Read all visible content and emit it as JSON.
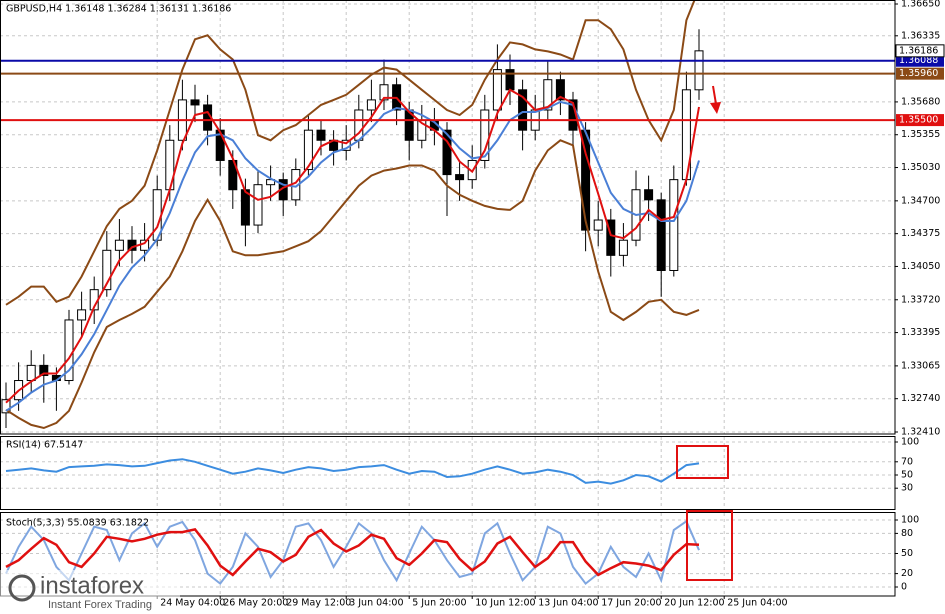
{
  "chart_data": [
    {
      "type": "candlestick",
      "title": "GBPUSD,H4  1.36148 1.36284 1.36131 1.36186",
      "categories": [
        null,
        null,
        null,
        null,
        null,
        null,
        null,
        null,
        null,
        null,
        null,
        null,
        "24 May 04:00",
        null,
        null,
        null,
        null,
        "26 May 20:00",
        null,
        null,
        null,
        null,
        "29 May 12:00",
        null,
        null,
        null,
        null,
        "3 Jun 04:00",
        null,
        null,
        null,
        null,
        "5 Jun 20:00",
        null,
        null,
        null,
        null,
        "10 Jun 12:00",
        null,
        null,
        null,
        null,
        "13 Jun 04:00",
        null,
        null,
        null,
        null,
        "17 Jun 20:00",
        null,
        null,
        null,
        null,
        "20 Jun 12:00",
        null,
        null,
        null,
        null,
        "25 Jun 04:00"
      ],
      "open": [
        1.326,
        1.3273,
        1.3292,
        1.3307,
        1.3297,
        1.3292,
        1.3352,
        1.3362,
        1.3382,
        1.3421,
        1.3431,
        1.3421,
        1.3431,
        1.3481,
        1.353,
        1.357,
        1.3565,
        1.354,
        1.351,
        1.3481,
        1.3446,
        1.3486,
        1.3491,
        1.3471,
        1.3501,
        1.354,
        1.353,
        1.352,
        1.353,
        1.356,
        1.357,
        1.3585,
        1.356,
        1.353,
        1.355,
        1.354,
        1.3496,
        1.3491,
        1.351,
        1.356,
        1.36,
        1.358,
        1.354,
        1.356,
        1.359,
        1.357,
        1.354,
        1.3441,
        1.3451,
        1.3416,
        1.3431,
        1.3481,
        1.3471,
        1.3401,
        1.3491,
        1.358,
        null,
        null
      ],
      "high": [
        1.329,
        1.331,
        1.3322,
        1.3318,
        1.3305,
        1.3362,
        1.338,
        1.3395,
        1.344,
        1.3452,
        1.3445,
        1.3448,
        1.3495,
        1.3545,
        1.359,
        1.3585,
        1.3575,
        1.3552,
        1.352,
        1.3492,
        1.35,
        1.3505,
        1.3498,
        1.3512,
        1.3556,
        1.355,
        1.354,
        1.3545,
        1.3575,
        1.359,
        1.361,
        1.3592,
        1.3568,
        1.3565,
        1.3562,
        1.3548,
        1.351,
        1.3525,
        1.3575,
        1.3625,
        1.3615,
        1.359,
        1.3575,
        1.3608,
        1.3598,
        1.3578,
        1.3548,
        1.347,
        1.3462,
        1.3448,
        1.35,
        1.3495,
        1.3478,
        1.3505,
        1.3598,
        1.364,
        null,
        null
      ],
      "low": [
        1.3245,
        1.3262,
        1.328,
        1.327,
        1.3262,
        1.3288,
        1.3335,
        1.3348,
        1.3375,
        1.3405,
        1.3408,
        1.341,
        1.3425,
        1.347,
        1.352,
        1.3548,
        1.3525,
        1.3495,
        1.3462,
        1.3425,
        1.3438,
        1.347,
        1.3455,
        1.3465,
        1.3495,
        1.3515,
        1.3505,
        1.351,
        1.3522,
        1.3548,
        1.356,
        1.3545,
        1.351,
        1.3522,
        1.3525,
        1.3455,
        1.347,
        1.3482,
        1.3502,
        1.355,
        1.3565,
        1.352,
        1.353,
        1.355,
        1.3555,
        1.3525,
        1.342,
        1.3425,
        1.3395,
        1.3405,
        1.3425,
        1.345,
        1.3375,
        1.3395,
        1.3485,
        1.357,
        null,
        null
      ],
      "close": [
        1.3273,
        1.3292,
        1.3307,
        1.3297,
        1.3292,
        1.3352,
        1.3362,
        1.3382,
        1.3421,
        1.3431,
        1.3421,
        1.3431,
        1.3481,
        1.353,
        1.357,
        1.3565,
        1.354,
        1.351,
        1.3481,
        1.3446,
        1.3486,
        1.3491,
        1.3471,
        1.3501,
        1.354,
        1.353,
        1.352,
        1.353,
        1.356,
        1.357,
        1.3585,
        1.356,
        1.353,
        1.355,
        1.354,
        1.3496,
        1.3491,
        1.351,
        1.356,
        1.36,
        1.358,
        1.354,
        1.356,
        1.359,
        1.357,
        1.354,
        1.3441,
        1.3451,
        1.3416,
        1.3431,
        1.3481,
        1.3471,
        1.3401,
        1.3491,
        1.358,
        1.36186,
        null,
        null
      ],
      "series": [
        {
          "color": "#8b4a16",
          "values": [
            1.3367,
            1.3375,
            1.3385,
            1.3385,
            1.337,
            1.3375,
            1.3395,
            1.342,
            1.3445,
            1.3462,
            1.347,
            1.3485,
            1.352,
            1.356,
            1.36,
            1.363,
            1.3634,
            1.362,
            1.361,
            1.358,
            1.3535,
            1.353,
            1.354,
            1.3545,
            1.3555,
            1.3565,
            1.357,
            1.3575,
            1.3585,
            1.3595,
            1.3602,
            1.36,
            1.359,
            1.358,
            1.357,
            1.356,
            1.3555,
            1.3565,
            1.359,
            1.361,
            1.3627,
            1.3625,
            1.362,
            1.3618,
            1.3615,
            1.361,
            1.3649,
            1.3649,
            1.364,
            1.362,
            1.358,
            1.355,
            1.353,
            1.356,
            1.3649,
            1.368,
            null,
            null
          ]
        },
        {
          "color": "#8b4a16",
          "values": [
            1.3263,
            1.3255,
            1.3248,
            1.3245,
            1.325,
            1.3262,
            1.329,
            1.332,
            1.3345,
            1.3352,
            1.3358,
            1.3365,
            1.338,
            1.3395,
            1.342,
            1.345,
            1.3471,
            1.345,
            1.342,
            1.3416,
            1.3416,
            1.3418,
            1.342,
            1.3425,
            1.343,
            1.344,
            1.3455,
            1.347,
            1.3485,
            1.3495,
            1.35,
            1.3502,
            1.3505,
            1.3505,
            1.35,
            1.3485,
            1.3476,
            1.347,
            1.3465,
            1.3462,
            1.3461,
            1.347,
            1.35,
            1.352,
            1.353,
            1.3525,
            1.345,
            1.34,
            1.336,
            1.3352,
            1.336,
            1.337,
            1.3372,
            1.336,
            1.3357,
            1.3362,
            null,
            null
          ]
        },
        {
          "color": "#4a7fd6",
          "values": [
            1.3262,
            1.327,
            1.328,
            1.3288,
            1.3292,
            1.3302,
            1.3318,
            1.3338,
            1.3362,
            1.3386,
            1.3404,
            1.3416,
            1.3432,
            1.3458,
            1.349,
            1.3518,
            1.3534,
            1.3536,
            1.353,
            1.3512,
            1.35,
            1.3492,
            1.3486,
            1.3484,
            1.3494,
            1.3508,
            1.3518,
            1.3522,
            1.353,
            1.3542,
            1.3556,
            1.3562,
            1.356,
            1.3555,
            1.3548,
            1.3536,
            1.3522,
            1.3512,
            1.3514,
            1.353,
            1.355,
            1.3558,
            1.3558,
            1.3562,
            1.3568,
            1.3565,
            1.3538,
            1.3508,
            1.3478,
            1.3462,
            1.3456,
            1.3458,
            1.345,
            1.345,
            1.347,
            1.351,
            null,
            null
          ]
        },
        {
          "color": "#e01010",
          "values": [
            1.327,
            1.3282,
            1.3291,
            1.3299,
            1.3299,
            1.3314,
            1.3335,
            1.3365,
            1.3388,
            1.3411,
            1.3424,
            1.3428,
            1.3444,
            1.3481,
            1.3527,
            1.3555,
            1.3558,
            1.3538,
            1.3512,
            1.3479,
            1.3471,
            1.3474,
            1.3483,
            1.3488,
            1.3504,
            1.3524,
            1.353,
            1.3527,
            1.3537,
            1.3553,
            1.3572,
            1.3572,
            1.3558,
            1.3547,
            1.354,
            1.3529,
            1.3509,
            1.3499,
            1.352,
            1.3557,
            1.358,
            1.3573,
            1.356,
            1.3563,
            1.3573,
            1.3567,
            1.3517,
            1.3477,
            1.3436,
            1.3433,
            1.3443,
            1.3461,
            1.3451,
            1.3454,
            1.3491,
            1.3563,
            null,
            null
          ]
        }
      ],
      "levels": [
        {
          "value": 1.36088,
          "color": "#0a0aa8"
        },
        {
          "value": 1.3596,
          "label": "1.35960",
          "color": "#8b4a16"
        },
        {
          "value": 1.355,
          "label": "1.35500",
          "color": "#e01010"
        }
      ],
      "ylim": [
        1.3241,
        1.3665
      ],
      "yticks": [
        {
          "value": 1.3665,
          "label": "1.36650"
        },
        1.36335,
        {
          "value": 1.3568,
          "label": "1.35680"
        },
        1.35355,
        {
          "value": 1.3503,
          "label": "1.35030"
        },
        {
          "value": 1.347,
          "label": "1.34700"
        },
        1.34375,
        {
          "value": 1.3405,
          "label": "1.34050"
        },
        {
          "value": 1.3372,
          "label": "1.33720"
        },
        1.33395,
        1.33065,
        {
          "value": 1.3274,
          "label": "1.32740"
        },
        {
          "value": 1.3241,
          "label": "1.32410"
        }
      ],
      "grid": true
    },
    {
      "type": "line",
      "title": "RSI(14) 67.5147",
      "series": [
        {
          "color": "#3c8de0",
          "values": [
            56,
            58,
            60,
            57,
            55,
            62,
            63,
            64,
            66,
            65,
            63,
            64,
            68,
            72,
            74,
            70,
            64,
            58,
            52,
            55,
            60,
            57,
            53,
            58,
            62,
            60,
            56,
            58,
            62,
            63,
            65,
            58,
            52,
            56,
            55,
            47,
            48,
            52,
            58,
            63,
            58,
            52,
            54,
            58,
            55,
            50,
            38,
            40,
            37,
            42,
            50,
            48,
            40,
            52,
            65,
            67.5147,
            null,
            null
          ]
        }
      ],
      "ylim": [
        0,
        100
      ],
      "yticks": [
        100,
        70,
        50,
        30
      ],
      "grid": true
    },
    {
      "type": "line",
      "title": "Stoch(5,3,3) 55.0839 63.1822",
      "series": [
        {
          "color": "#7fa6e0",
          "values": [
            20,
            60,
            90,
            70,
            30,
            10,
            50,
            90,
            85,
            40,
            80,
            95,
            60,
            90,
            97,
            70,
            20,
            5,
            30,
            80,
            60,
            15,
            40,
            90,
            95,
            70,
            30,
            60,
            95,
            80,
            40,
            10,
            50,
            90,
            70,
            40,
            15,
            20,
            80,
            95,
            50,
            10,
            30,
            90,
            80,
            30,
            5,
            20,
            60,
            30,
            15,
            50,
            10,
            85,
            98,
            55.0839,
            null,
            null
          ]
        },
        {
          "color": "#e01010",
          "values": [
            30,
            40,
            57,
            73,
            63,
            37,
            30,
            50,
            75,
            72,
            68,
            72,
            78,
            82,
            82,
            86,
            62,
            32,
            18,
            38,
            57,
            52,
            38,
            48,
            75,
            85,
            65,
            53,
            62,
            78,
            72,
            43,
            33,
            50,
            70,
            67,
            42,
            25,
            38,
            65,
            75,
            52,
            30,
            43,
            67,
            67,
            38,
            18,
            28,
            37,
            35,
            32,
            25,
            48,
            64,
            63.1822,
            null,
            null
          ]
        }
      ],
      "ylim": [
        0,
        100
      ],
      "yticks": [
        100,
        80,
        50,
        20,
        0
      ],
      "grid": true
    }
  ],
  "watermark": {
    "name": "instaforex",
    "tagline": "Instant Forex Trading"
  }
}
